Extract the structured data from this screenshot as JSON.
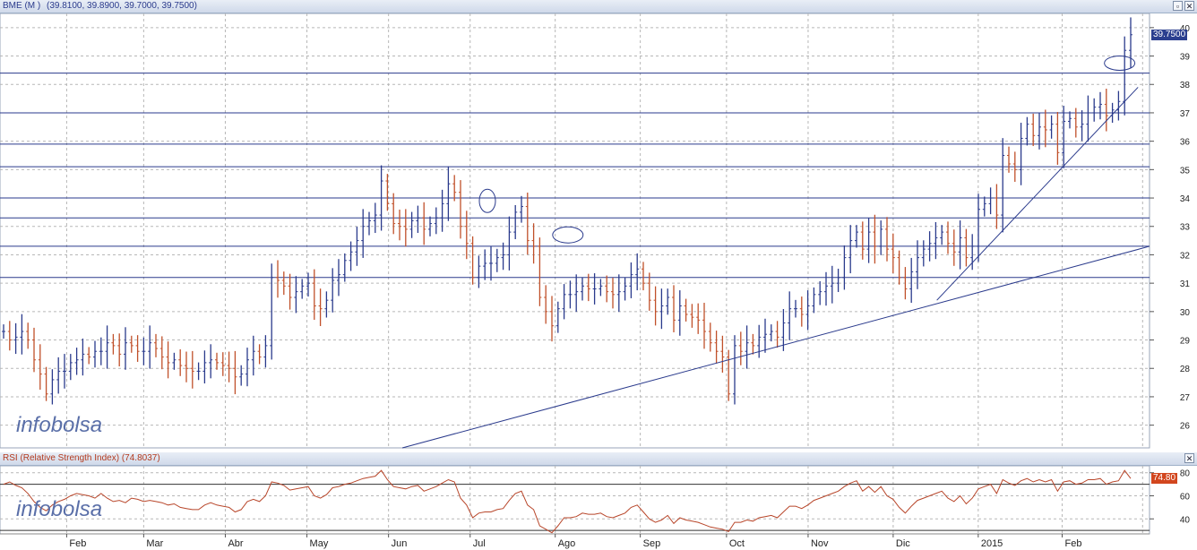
{
  "price_panel": {
    "symbol": "BME (M )",
    "ohlc": "(39.8100, 39.8900, 39.7000, 39.7500)",
    "last_value": "39.7500",
    "minimize_icon": "minimize-icon",
    "close_icon": "close-icon",
    "watermark": "infobolsa",
    "last_badge_color": "#2b3f8f"
  },
  "rsi_panel": {
    "label": "RSI (Relative Strength Index)",
    "value_paren": "(74.8037)",
    "last_value": "74.80",
    "watermark": "infobolsa",
    "last_badge_color": "#d2461e"
  },
  "colors": {
    "up": "#2a3a8c",
    "down": "#c0502a",
    "rsi_line": "#b8462a",
    "grid": "#b7b7b7",
    "lines": "#2a3a8c"
  },
  "chart_data": [
    {
      "type": "bar",
      "subtype": "ohlc",
      "series_name": "BME (M )",
      "x_ticks": [
        "Feb",
        "Mar",
        "Abr",
        "May",
        "Jun",
        "Jul",
        "Ago",
        "Sep",
        "Oct",
        "Nov",
        "Dic",
        "2015",
        "Feb"
      ],
      "y_ticks": [
        26,
        27,
        28,
        29,
        30,
        31,
        32,
        33,
        34,
        35,
        36,
        37,
        38,
        39,
        40
      ],
      "ylim": [
        25.2,
        40.5
      ],
      "grid": true,
      "horizontal_levels": [
        38.4,
        37.0,
        35.9,
        35.1,
        34.0,
        33.3,
        32.3,
        31.2
      ],
      "trendlines": [
        {
          "from": [
            0.35,
            25.2
          ],
          "to": [
            1.0,
            32.3
          ]
        },
        {
          "from": [
            0.815,
            30.4
          ],
          "to": [
            0.99,
            37.9
          ]
        }
      ],
      "ellipses": [
        {
          "x": 0.424,
          "y": 33.9
        },
        {
          "x": 0.494,
          "y": 32.7
        },
        {
          "x": 0.974,
          "y": 38.75
        }
      ],
      "closes": [
        29.3,
        29.0,
        29.1,
        29.3,
        29.0,
        28.3,
        27.8,
        27.1,
        27.6,
        27.9,
        27.9,
        28.2,
        28.3,
        28.5,
        28.4,
        28.6,
        28.6,
        28.9,
        28.8,
        28.5,
        28.9,
        28.8,
        28.6,
        28.6,
        28.9,
        28.7,
        28.4,
        28.2,
        28.3,
        28.1,
        28.0,
        27.9,
        27.9,
        28.2,
        28.3,
        28.2,
        28.1,
        28.0,
        27.7,
        27.8,
        28.3,
        28.6,
        28.4,
        28.8,
        31.2,
        31.1,
        30.9,
        30.5,
        30.7,
        30.9,
        31.0,
        30.2,
        30.1,
        30.4,
        31.1,
        31.3,
        31.8,
        32.1,
        32.5,
        33.0,
        33.2,
        33.4,
        34.6,
        33.8,
        33.1,
        33.0,
        32.9,
        33.2,
        33.3,
        32.9,
        33.1,
        33.3,
        33.8,
        34.5,
        34.2,
        33.0,
        32.4,
        31.2,
        31.6,
        31.7,
        31.7,
        31.9,
        32.0,
        32.8,
        33.5,
        33.7,
        32.5,
        32.3,
        30.5,
        30.0,
        29.5,
        30.1,
        30.6,
        30.6,
        30.7,
        30.9,
        30.8,
        30.8,
        30.9,
        30.7,
        30.6,
        30.7,
        30.9,
        31.3,
        31.5,
        31.0,
        30.4,
        30.0,
        30.2,
        30.5,
        29.7,
        30.2,
        29.9,
        29.8,
        29.7,
        29.3,
        28.9,
        28.6,
        28.4,
        27.1,
        28.8,
        28.6,
        28.9,
        28.8,
        29.1,
        29.2,
        29.3,
        29.1,
        29.6,
        30.1,
        30.1,
        29.9,
        30.2,
        30.6,
        30.7,
        30.9,
        31.0,
        31.2,
        31.9,
        32.5,
        32.8,
        32.2,
        32.8,
        32.3,
        32.9,
        32.2,
        31.9,
        31.2,
        30.8,
        31.4,
        31.9,
        32.2,
        32.4,
        32.6,
        32.8,
        32.4,
        32.1,
        32.6,
        31.9,
        32.3,
        33.6,
        33.8,
        34.0,
        33.4,
        35.5,
        35.2,
        35.0,
        36.1,
        36.6,
        36.2,
        36.5,
        36.4,
        36.6,
        35.6,
        36.7,
        36.8,
        36.5,
        36.6,
        37.0,
        37.2,
        37.3,
        36.9,
        37.1,
        37.4,
        39.2,
        39.75
      ],
      "last_value": 39.75
    },
    {
      "type": "line",
      "series_name": "RSI (Relative Strength Index)",
      "y_ticks": [
        40,
        60,
        80
      ],
      "ylim": [
        27,
        86
      ],
      "levels": [
        70,
        30
      ],
      "last_value": 74.8037,
      "values": [
        70,
        72,
        69,
        67,
        62,
        55,
        50,
        47,
        52,
        55,
        57,
        60,
        62,
        61,
        60,
        58,
        62,
        58,
        55,
        56,
        54,
        58,
        57,
        55,
        56,
        55,
        54,
        52,
        53,
        50,
        49,
        48,
        48,
        52,
        54,
        52,
        51,
        50,
        46,
        48,
        55,
        57,
        55,
        60,
        72,
        71,
        69,
        65,
        66,
        67,
        68,
        60,
        58,
        61,
        67,
        68,
        70,
        71,
        73,
        75,
        76,
        77,
        82,
        74,
        68,
        67,
        66,
        68,
        69,
        64,
        66,
        68,
        71,
        74,
        72,
        58,
        52,
        41,
        45,
        46,
        46,
        48,
        49,
        56,
        62,
        64,
        52,
        48,
        34,
        31,
        28,
        34,
        41,
        41,
        42,
        45,
        44,
        44,
        45,
        42,
        41,
        43,
        45,
        50,
        52,
        46,
        40,
        37,
        39,
        43,
        36,
        41,
        39,
        38,
        37,
        35,
        33,
        32,
        31,
        29,
        37,
        37,
        39,
        38,
        41,
        42,
        43,
        41,
        46,
        51,
        51,
        49,
        52,
        56,
        58,
        60,
        62,
        64,
        68,
        71,
        73,
        64,
        68,
        63,
        68,
        60,
        57,
        50,
        45,
        51,
        56,
        58,
        60,
        62,
        64,
        58,
        55,
        60,
        53,
        58,
        66,
        68,
        70,
        62,
        74,
        71,
        69,
        73,
        75,
        72,
        74,
        72,
        74,
        64,
        72,
        73,
        70,
        71,
        74,
        74,
        75,
        70,
        72,
        73,
        82,
        75
      ]
    }
  ]
}
